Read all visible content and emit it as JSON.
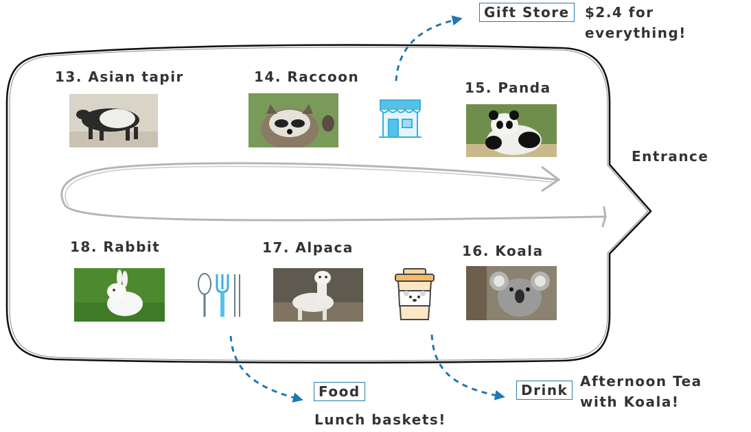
{
  "animals": [
    {
      "label": "13. Asian tapir"
    },
    {
      "label": "14. Raccoon"
    },
    {
      "label": "15. Panda"
    },
    {
      "label": "16. Koala"
    },
    {
      "label": "17. Alpaca"
    },
    {
      "label": "18. Rabbit"
    }
  ],
  "entrance_label": "Entrance",
  "facilities": {
    "gift_store": {
      "label": "Gift Store",
      "note_line1": "$2.4 for",
      "note_line2": "everything!"
    },
    "food": {
      "label": "Food",
      "note": "Lunch baskets!"
    },
    "drink": {
      "label": "Drink",
      "note_line1": "Afternoon Tea",
      "note_line2": "with Koala!"
    }
  },
  "icons": [
    "store-icon",
    "utensils-icon",
    "coffee-cup-icon"
  ],
  "colors": {
    "arrow_blue": "#1f77b4",
    "icon_blue": "#55c3e8",
    "outline": "#111111",
    "path_gray": "#b5b5b5"
  }
}
